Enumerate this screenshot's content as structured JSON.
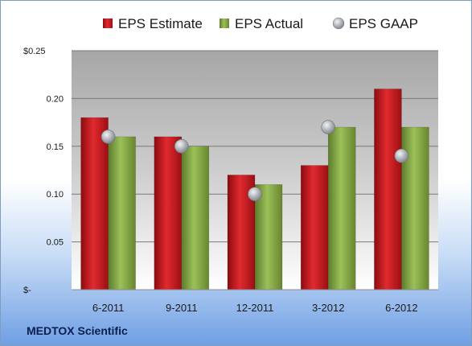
{
  "chart_data": {
    "type": "bar",
    "categories": [
      "6-2011",
      "9-2011",
      "12-2011",
      "3-2012",
      "6-2012"
    ],
    "series": [
      {
        "name": "EPS Estimate",
        "kind": "bar",
        "color": "#c0141a",
        "values": [
          0.18,
          0.16,
          0.12,
          0.13,
          0.21
        ]
      },
      {
        "name": "EPS Actual",
        "kind": "bar",
        "color": "#7fa043",
        "values": [
          0.16,
          0.15,
          0.11,
          0.17,
          0.17
        ]
      },
      {
        "name": "EPS GAAP",
        "kind": "marker",
        "color": "#a9adb3",
        "values": [
          0.16,
          0.15,
          0.1,
          0.17,
          0.14
        ]
      }
    ],
    "ylim": [
      0,
      0.25
    ],
    "yticks": [
      0,
      0.05,
      0.1,
      0.15,
      0.2,
      0.25
    ],
    "ytick_labels": [
      "$-",
      "0.05",
      "0.10",
      "0.15",
      "0.20",
      "$0.25"
    ],
    "grid": true,
    "legend_position": "top",
    "footer_label": "MEDTOX Scientific"
  }
}
